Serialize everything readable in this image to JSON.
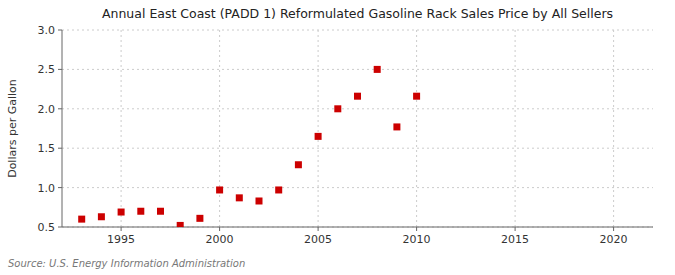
{
  "chart_data": {
    "type": "scatter",
    "title": "Annual East Coast (PADD 1) Reformulated Gasoline Rack Sales Price by All Sellers",
    "ylabel": "Dollars per Gallon",
    "source": "Source: U.S. Energy Information Administration",
    "x": [
      1993,
      1994,
      1995,
      1996,
      1997,
      1998,
      1999,
      2000,
      2001,
      2002,
      2003,
      2004,
      2005,
      2006,
      2007,
      2008,
      2009,
      2010
    ],
    "values": [
      0.6,
      0.63,
      0.69,
      0.7,
      0.7,
      0.52,
      0.61,
      0.97,
      0.87,
      0.83,
      0.97,
      1.29,
      1.65,
      2.0,
      2.16,
      2.5,
      1.77,
      2.16
    ],
    "color": "#cc0000",
    "marker": "square",
    "xlim": [
      1992,
      2022
    ],
    "ylim": [
      0.5,
      3.0
    ],
    "xticks": [
      1995,
      2000,
      2005,
      2010,
      2015,
      2020
    ],
    "yticks": [
      0.5,
      {
        "value": 1.0,
        "label": "1.0"
      },
      1.5,
      {
        "value": 2.0,
        "label": "2.0"
      },
      2.5,
      {
        "value": 3.0,
        "label": "3.0"
      }
    ],
    "grid": true
  }
}
